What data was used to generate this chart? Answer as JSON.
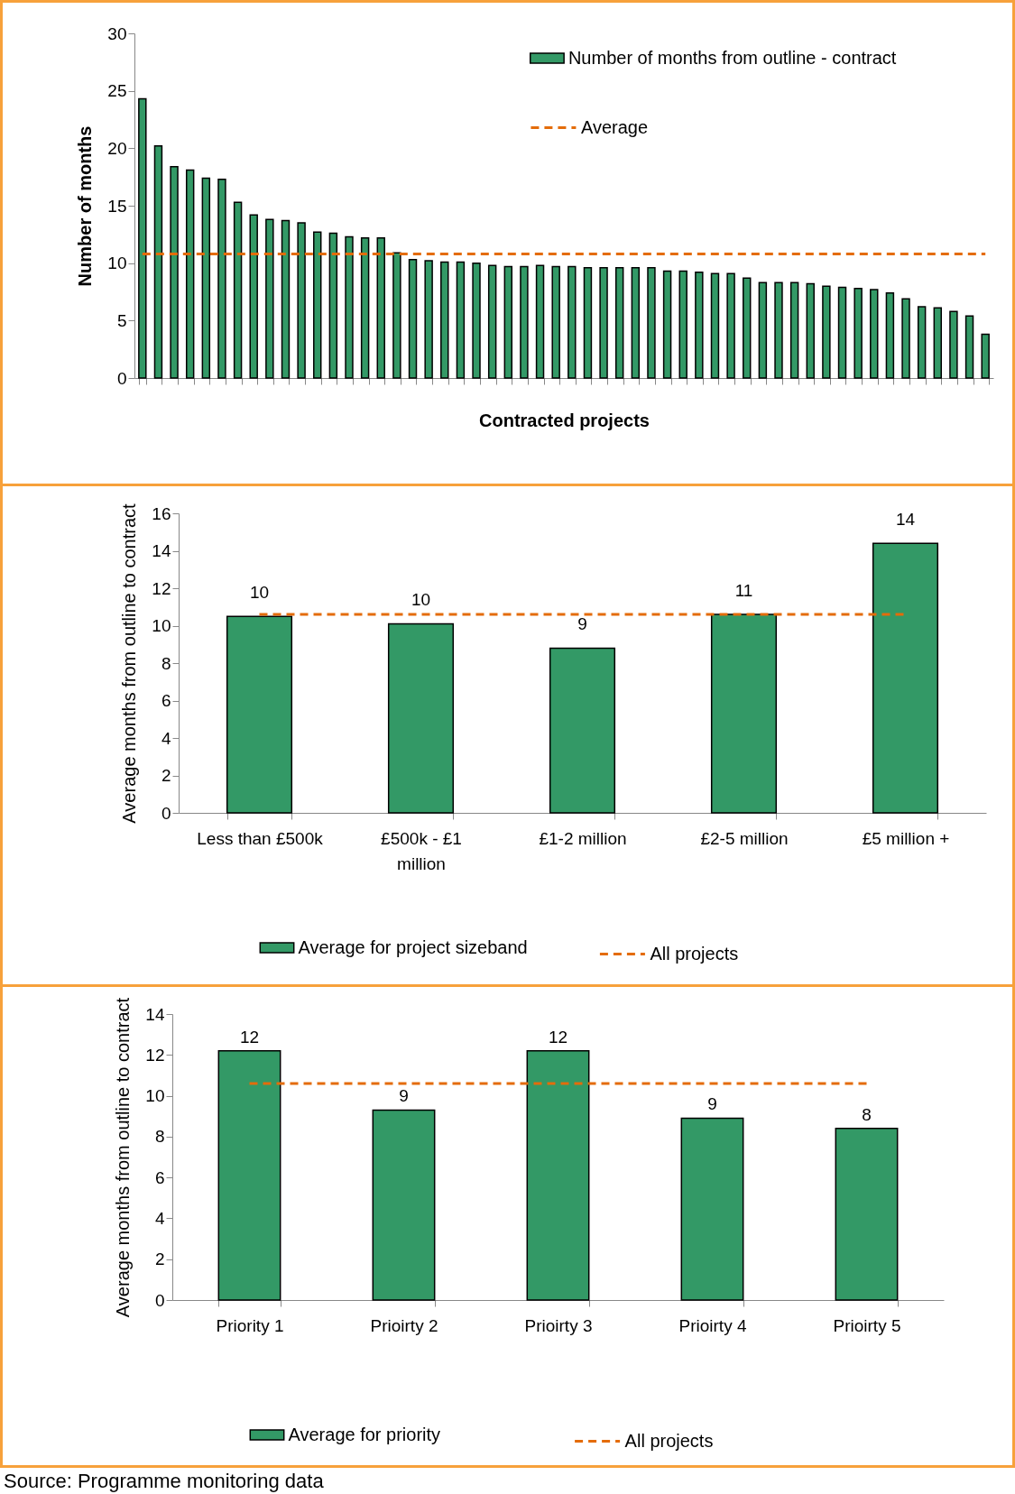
{
  "chart_data": [
    {
      "type": "bar",
      "ylabel": "Number of months",
      "xlabel": "Contracted projects",
      "categories": [
        null,
        null,
        null,
        null,
        null,
        null,
        null,
        null,
        null,
        null,
        null,
        null,
        null,
        null,
        null,
        null,
        null,
        null,
        null,
        null,
        null,
        null,
        null,
        null,
        null,
        null,
        null,
        null,
        null,
        null,
        null,
        null,
        null,
        null,
        null,
        null,
        null,
        null,
        null,
        null,
        null,
        null,
        null,
        null,
        null,
        null,
        null,
        null,
        null,
        null,
        null,
        null,
        null,
        null
      ],
      "series": [
        {
          "name": "Number of months from outline  - contract",
          "color": "#339966",
          "values": [
            24.3,
            20.2,
            18.4,
            18.1,
            17.4,
            17.3,
            15.3,
            14.2,
            13.8,
            13.7,
            13.5,
            12.7,
            12.6,
            12.3,
            12.2,
            12.2,
            10.9,
            10.3,
            10.2,
            10.1,
            10.1,
            10.0,
            9.8,
            9.7,
            9.7,
            9.8,
            9.7,
            9.7,
            9.6,
            9.6,
            9.6,
            9.6,
            9.6,
            9.3,
            9.3,
            9.2,
            9.1,
            9.1,
            8.7,
            8.3,
            8.3,
            8.3,
            8.2,
            8.0,
            7.9,
            7.8,
            7.7,
            7.4,
            6.9,
            6.2,
            6.1,
            5.8,
            5.4,
            3.8
          ]
        },
        {
          "name": "Average",
          "type": "line",
          "color": "#e46c0a",
          "line_style": "dashed",
          "values": [
            10.8,
            10.8,
            10.8,
            10.8,
            10.8,
            10.8,
            10.8,
            10.8,
            10.8,
            10.8,
            10.8,
            10.8,
            10.8,
            10.8,
            10.8,
            10.8,
            10.8,
            10.8,
            10.8,
            10.8,
            10.8,
            10.8,
            10.8,
            10.8,
            10.8,
            10.8,
            10.8,
            10.8,
            10.8,
            10.8,
            10.8,
            10.8,
            10.8,
            10.8,
            10.8,
            10.8,
            10.8,
            10.8,
            10.8,
            10.8,
            10.8,
            10.8,
            10.8,
            10.8,
            10.8,
            10.8,
            10.8,
            10.8,
            10.8,
            10.8,
            10.8,
            10.8,
            10.8,
            10.8
          ]
        }
      ],
      "ylim": [
        0,
        30
      ],
      "yticks": [
        0,
        5,
        10,
        15,
        20,
        25,
        30
      ],
      "grid": false,
      "legend": "top right",
      "tick_labels": "y"
    },
    {
      "type": "bar",
      "ylabel": "Average months from outline to contract",
      "categories": [
        "Less than  £500k",
        "£500k - £1 million",
        "£1-2 million",
        "£2-5 million",
        "£5 million +"
      ],
      "series": [
        {
          "name": "Average for project sizeband",
          "color": "#339966",
          "values": [
            10.5,
            10.1,
            8.8,
            10.6,
            14.4
          ],
          "value_labels": [
            "10",
            "10",
            "9",
            "11",
            "14"
          ]
        },
        {
          "name": "All projects",
          "type": "line",
          "color": "#e46c0a",
          "line_style": "dashed",
          "values": [
            10.6,
            10.6,
            10.6,
            10.6,
            10.6
          ]
        }
      ],
      "ylim": [
        0,
        16
      ],
      "yticks": [
        0,
        2,
        4,
        6,
        8,
        10,
        12,
        14,
        16
      ],
      "grid": false,
      "legend": "bottom"
    },
    {
      "type": "bar",
      "ylabel": "Average months from outline to contract",
      "categories": [
        "Priority 1",
        "Prioirty 2",
        "Prioirty 3",
        "Prioirty 4",
        "Prioirty 5"
      ],
      "series": [
        {
          "name": "Average for priority",
          "color": "#339966",
          "values": [
            12.2,
            9.3,
            12.2,
            8.9,
            8.4
          ],
          "value_labels": [
            "12",
            "9",
            "12",
            "9",
            "8"
          ]
        },
        {
          "name": "All projects",
          "type": "line",
          "color": "#e46c0a",
          "line_style": "dashed",
          "values": [
            10.6,
            10.6,
            10.6,
            10.6,
            10.6
          ]
        }
      ],
      "ylim": [
        0,
        14
      ],
      "yticks": [
        0,
        2,
        4,
        6,
        8,
        10,
        12,
        14
      ],
      "grid": false,
      "legend": "bottom",
      "annotations": [
        "Source: Programme monitoring data"
      ]
    }
  ]
}
